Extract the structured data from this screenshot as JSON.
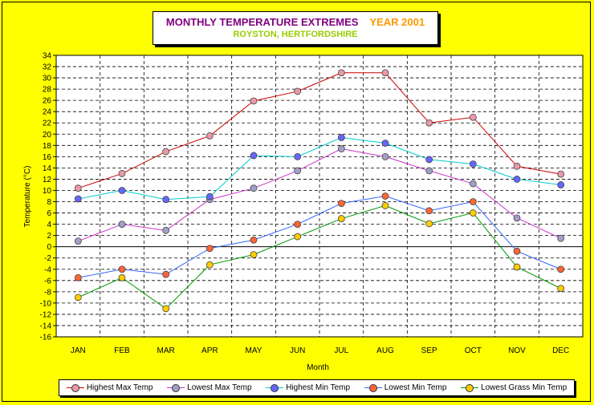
{
  "title": "MONTHLY TEMPERATURE EXTREMES",
  "year": "YEAR 2001",
  "subtitle": "ROYSTON, HERTFORDSHIRE",
  "colors": {
    "background": "#ffff00",
    "title": "#800080",
    "year": "#ff9900",
    "subtitle": "#99cc00"
  },
  "chart_data": {
    "type": "line",
    "xlabel": "Month",
    "ylabel": "Temperature (°C)",
    "categories": [
      "JAN",
      "FEB",
      "MAR",
      "APR",
      "MAY",
      "JUN",
      "JUL",
      "AUG",
      "SEP",
      "OCT",
      "NOV",
      "DEC"
    ],
    "ylim": [
      -16,
      34
    ],
    "ytick_step": 2,
    "grid": true,
    "legend": "bottom",
    "series": [
      {
        "name": "Highest Max Temp",
        "line_color": "#cc0000",
        "marker_color": "#e899a8",
        "values": [
          10.4,
          13.0,
          16.9,
          19.7,
          25.9,
          27.6,
          30.9,
          30.9,
          22.0,
          23.0,
          14.3,
          12.9
        ]
      },
      {
        "name": "Lowest Max Temp",
        "line_color": "#cc33cc",
        "marker_color": "#a0a0c8",
        "values": [
          1.0,
          4.0,
          2.9,
          8.4,
          10.4,
          13.5,
          17.4,
          16.0,
          13.5,
          11.2,
          5.1,
          1.5
        ]
      },
      {
        "name": "Highest Min Temp",
        "line_color": "#00cccc",
        "marker_color": "#6666ff",
        "values": [
          8.5,
          10.0,
          8.4,
          8.9,
          16.2,
          16.0,
          19.4,
          18.4,
          15.5,
          14.7,
          12.0,
          11.0
        ]
      },
      {
        "name": "Lowest Min Temp",
        "line_color": "#3366ff",
        "marker_color": "#ff6633",
        "values": [
          -5.5,
          -4.0,
          -4.9,
          -0.3,
          1.2,
          4.0,
          7.7,
          9.0,
          6.4,
          8.0,
          -0.8,
          -4.0
        ]
      },
      {
        "name": "Lowest Grass Min Temp",
        "line_color": "#009900",
        "marker_color": "#ffcc00",
        "values": [
          -9.0,
          -5.5,
          -11.0,
          -3.2,
          -1.4,
          1.8,
          5.0,
          7.3,
          4.1,
          6.0,
          -3.6,
          -7.4
        ]
      }
    ]
  }
}
